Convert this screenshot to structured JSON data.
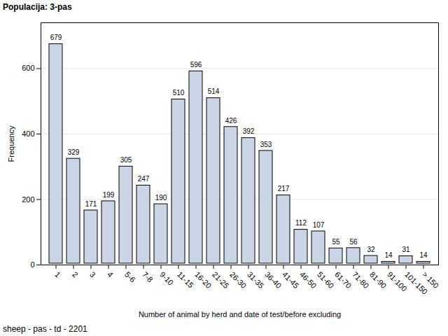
{
  "chart_data": {
    "type": "bar",
    "title": "Populacija: 3-pas",
    "caption": "sheep - pas - td - 2201",
    "xlabel": "Number of animal by herd and date of test/before excluding",
    "ylabel": "Frequency",
    "categories": [
      "1",
      "2",
      "3",
      "4",
      "5-6",
      "7-8",
      "9-10",
      "11-15",
      "16-20",
      "21-25",
      "26-30",
      "31-35",
      "36-40",
      "41-45",
      "46-50",
      "51-60",
      "61-70",
      "71-80",
      "81-90",
      "91-100",
      "101-150",
      "> 150"
    ],
    "values": [
      679,
      329,
      171,
      199,
      305,
      247,
      190,
      510,
      596,
      514,
      426,
      392,
      353,
      217,
      112,
      107,
      55,
      56,
      32,
      14,
      31,
      14
    ],
    "color": "#cad5e5",
    "ylim": [
      0,
      740
    ],
    "yticks": [
      0,
      200,
      400,
      600
    ],
    "grid": true,
    "data_labels": true
  }
}
